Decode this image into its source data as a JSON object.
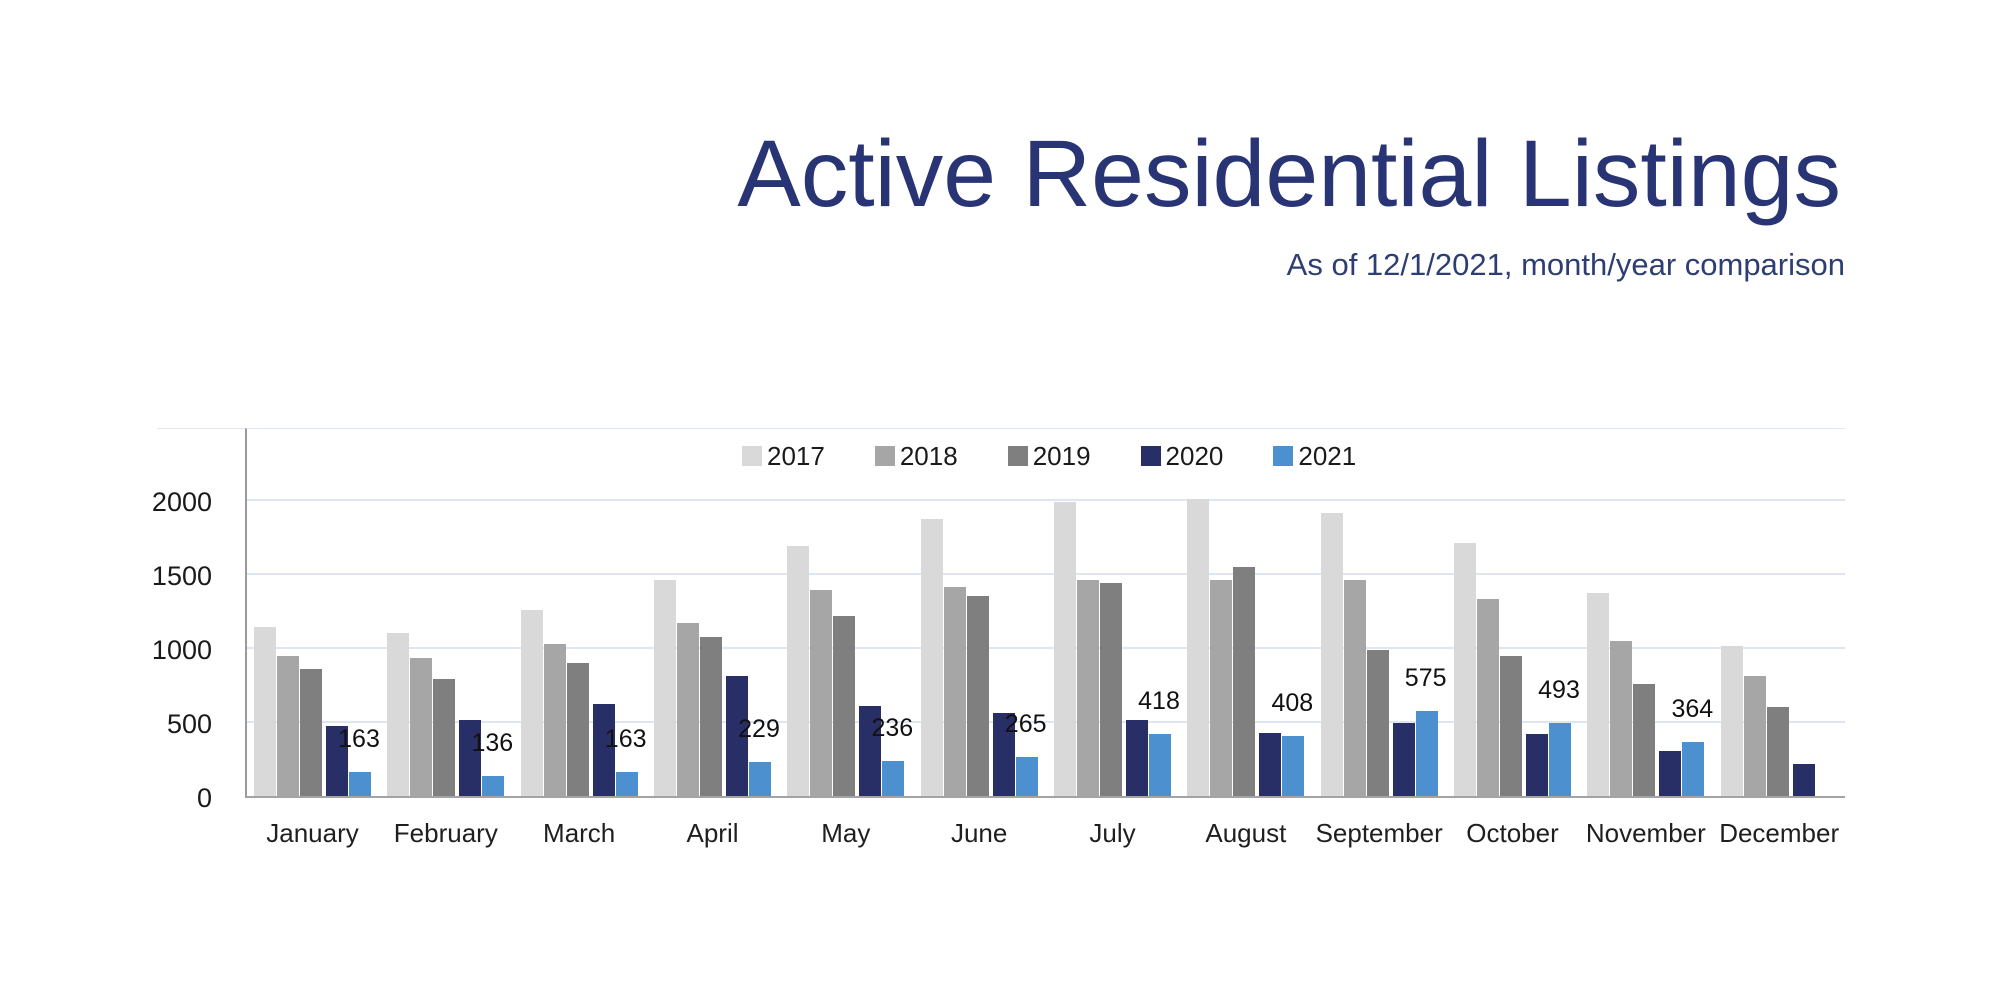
{
  "header": {
    "title": "Active Residential Listings",
    "subtitle": "As of 12/1/2021, month/year comparison"
  },
  "colors": {
    "title": "#283473",
    "subtitle": "#2e3e73",
    "gridline": "#dde6f1",
    "axis": "#9a9a9a",
    "tick_text": "#1a1a1a"
  },
  "chart_data": {
    "type": "bar",
    "title": "Active Residential Listings",
    "subtitle": "As of 12/1/2021, month/year comparison",
    "categories": [
      "January",
      "February",
      "March",
      "April",
      "May",
      "June",
      "July",
      "August",
      "September",
      "October",
      "November",
      "December"
    ],
    "series": [
      {
        "name": "2017",
        "color": "#d9d9d9",
        "values": [
          1145,
          1100,
          1255,
          1460,
          1690,
          1870,
          1985,
          2010,
          1915,
          1710,
          1370,
          1015
        ]
      },
      {
        "name": "2018",
        "color": "#a6a6a6",
        "values": [
          945,
          930,
          1030,
          1170,
          1390,
          1415,
          1460,
          1460,
          1460,
          1330,
          1050,
          810
        ]
      },
      {
        "name": "2019",
        "color": "#7f7f7f",
        "values": [
          855,
          790,
          900,
          1075,
          1215,
          1350,
          1440,
          1550,
          985,
          945,
          755,
          600
        ]
      },
      {
        "name": "2020",
        "color": "#272f66",
        "values": [
          470,
          515,
          625,
          810,
          605,
          560,
          515,
          425,
          490,
          420,
          305,
          215
        ]
      },
      {
        "name": "2021",
        "color": "#4d90d0",
        "data_labels": true,
        "values": [
          163,
          136,
          163,
          229,
          236,
          265,
          418,
          408,
          575,
          493,
          364,
          null
        ]
      }
    ],
    "xlabel": "",
    "ylabel": "",
    "ylim": [
      0,
      2500
    ],
    "yticks": [
      0,
      500,
      1000,
      1500,
      2000
    ],
    "grid": "horizontal",
    "legend_position": "top-center"
  }
}
